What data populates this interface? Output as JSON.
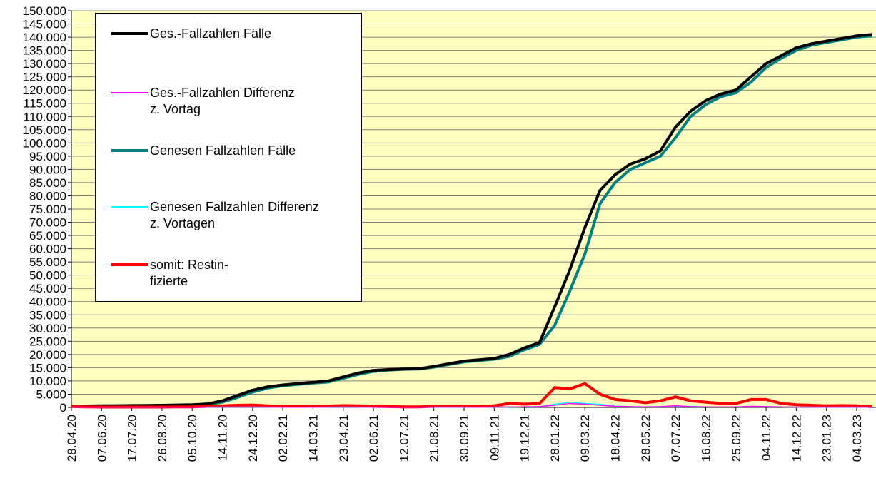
{
  "chart_data": {
    "type": "line",
    "categories": [
      "28.04.20",
      null,
      "07.06.20",
      null,
      "17.07.20",
      null,
      "26.08.20",
      null,
      "05.10.20",
      null,
      "14.11.20",
      null,
      "24.12.20",
      null,
      "02.02.21",
      null,
      "14.03.21",
      null,
      "23.04.21",
      null,
      "02.06.21",
      null,
      "12.07.21",
      null,
      "21.08.21",
      null,
      "30.09.21",
      null,
      "09.11.21",
      null,
      "19.12.21",
      null,
      "28.01.22",
      null,
      "09.03.22",
      null,
      "18.04.22",
      null,
      "28.05.22",
      null,
      "07.07.22",
      null,
      "16.08.22",
      null,
      "25.09.22",
      null,
      "04.11.22",
      null,
      "14.12.22",
      null,
      "23.01.23",
      null,
      "04.03.23",
      null
    ],
    "series": [
      {
        "name": "Ges.-Fallzahlen Fälle",
        "color": "#000000",
        "values": [
          500,
          550,
          600,
          650,
          700,
          750,
          800,
          900,
          1000,
          1300,
          2500,
          4500,
          6500,
          7800,
          8500,
          9000,
          9500,
          10000,
          11500,
          13000,
          14000,
          14300,
          14500,
          14600,
          15500,
          16500,
          17500,
          18000,
          18500,
          20000,
          22500,
          24500,
          38000,
          52000,
          68000,
          82000,
          88000,
          92000,
          94000,
          97000,
          106000,
          112000,
          116000,
          118500,
          120000,
          125000,
          130000,
          133000,
          136000,
          137500,
          138500,
          139500,
          140500,
          141000
        ]
      },
      {
        "name": "Ges.-Fallzahlen Differenz\nz. Vortag",
        "color": "#ff00ff",
        "values": [
          100,
          50,
          50,
          50,
          50,
          50,
          50,
          50,
          50,
          100,
          150,
          150,
          150,
          100,
          50,
          50,
          50,
          100,
          150,
          100,
          50,
          50,
          50,
          50,
          100,
          100,
          100,
          50,
          100,
          200,
          200,
          300,
          800,
          1500,
          1200,
          800,
          400,
          300,
          200,
          300,
          600,
          300,
          200,
          200,
          200,
          400,
          300,
          200,
          150,
          100,
          100,
          100,
          100,
          50
        ]
      },
      {
        "name": "Genesen Fallzahlen Fälle",
        "color": "#008080",
        "values": [
          300,
          400,
          500,
          550,
          600,
          650,
          700,
          750,
          850,
          1000,
          2000,
          3800,
          5800,
          7300,
          8200,
          8700,
          9200,
          9600,
          11000,
          12500,
          13600,
          14100,
          14400,
          14500,
          15200,
          16200,
          17200,
          17700,
          18200,
          19300,
          21800,
          23800,
          31000,
          44000,
          58000,
          77000,
          85000,
          90000,
          92500,
          95000,
          102000,
          110000,
          114500,
          117500,
          119000,
          123000,
          128500,
          132000,
          135000,
          137000,
          138000,
          139000,
          140000,
          140500
        ]
      },
      {
        "name": "Genesen Fallzahlen Differenz\nz. Vortagen",
        "color": "#00ffff",
        "values": [
          50,
          50,
          50,
          50,
          50,
          50,
          50,
          50,
          50,
          100,
          150,
          150,
          150,
          100,
          50,
          50,
          50,
          100,
          150,
          100,
          50,
          50,
          50,
          50,
          100,
          100,
          100,
          50,
          100,
          150,
          200,
          300,
          1200,
          2000,
          1500,
          1200,
          500,
          300,
          200,
          300,
          500,
          400,
          200,
          200,
          200,
          300,
          300,
          200,
          150,
          100,
          100,
          100,
          100,
          50
        ]
      },
      {
        "name": "somit: Restin-\nfizierte",
        "color": "#ff0000",
        "values": [
          300,
          200,
          150,
          150,
          150,
          150,
          150,
          200,
          200,
          400,
          600,
          800,
          900,
          600,
          400,
          400,
          400,
          500,
          700,
          600,
          400,
          300,
          200,
          200,
          400,
          400,
          400,
          400,
          600,
          1500,
          1200,
          1500,
          7500,
          7000,
          9000,
          5000,
          3000,
          2500,
          1800,
          2500,
          4000,
          2500,
          2000,
          1500,
          1500,
          3000,
          3000,
          1500,
          1000,
          800,
          600,
          700,
          600,
          300
        ]
      }
    ],
    "ylim": [
      0,
      150000
    ],
    "yticks": [
      0,
      {
        "value": 5000,
        "label": "5.000"
      },
      {
        "value": 10000,
        "label": "10.000"
      },
      {
        "value": 15000,
        "label": "15.000"
      },
      {
        "value": 20000,
        "label": "20.000"
      },
      {
        "value": 25000,
        "label": "25.000"
      },
      {
        "value": 30000,
        "label": "30.000"
      },
      {
        "value": 35000,
        "label": "35.000"
      },
      {
        "value": 40000,
        "label": "40.000"
      },
      {
        "value": 45000,
        "label": "45.000"
      },
      {
        "value": 50000,
        "label": "50.000"
      },
      {
        "value": 55000,
        "label": "55.000"
      },
      {
        "value": 60000,
        "label": "60.000"
      },
      {
        "value": 65000,
        "label": "65.000"
      },
      {
        "value": 70000,
        "label": "70.000"
      },
      {
        "value": 75000,
        "label": "75.000"
      },
      {
        "value": 80000,
        "label": "80.000"
      },
      {
        "value": 85000,
        "label": "85.000"
      },
      {
        "value": 90000,
        "label": "90.000"
      },
      {
        "value": 95000,
        "label": "95.000"
      },
      {
        "value": 100000,
        "label": "100.000"
      },
      {
        "value": 105000,
        "label": "105.000"
      },
      {
        "value": 110000,
        "label": "110.000"
      },
      {
        "value": 115000,
        "label": "115.000"
      },
      {
        "value": 120000,
        "label": "120.000"
      },
      {
        "value": 125000,
        "label": "125.000"
      },
      {
        "value": 130000,
        "label": "130.000"
      },
      {
        "value": 135000,
        "label": "135.000"
      },
      {
        "value": 140000,
        "label": "140.000"
      },
      {
        "value": 145000,
        "label": "145.000"
      },
      {
        "value": 150000,
        "label": "150.000"
      }
    ],
    "grid": true,
    "legend": "upper left"
  }
}
